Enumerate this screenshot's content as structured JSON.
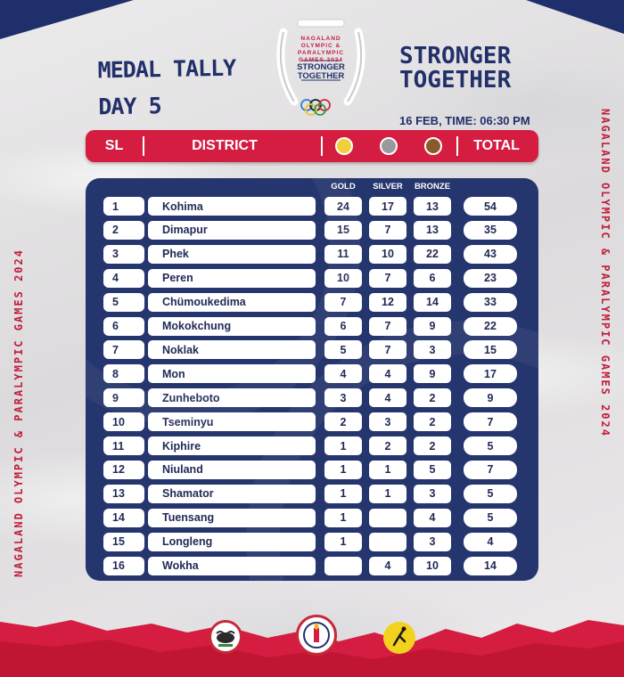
{
  "event_logo": {
    "line1": "NAGALAND",
    "line2": "OLYMPIC &",
    "line3": "PARALYMPIC",
    "line4": "GAMES 2024",
    "tagline1": "STRONGER",
    "tagline2": "TOGETHER"
  },
  "title": {
    "line1": "MEDAL TALLY",
    "line2": "DAY 5"
  },
  "slogan": {
    "line1": "STRONGER",
    "line2": "TOGETHER"
  },
  "datetime": "16 FEB, TIME: 06:30 PM",
  "side_text": "NAGALAND OLYMPIC & PARALYMPIC GAMES 2024",
  "header": {
    "sl": "SL",
    "district": "DISTRICT",
    "total": "TOTAL"
  },
  "medal_colors": {
    "gold": "#f2cf3a",
    "silver": "#9a9a9c",
    "bronze": "#8a5a2c"
  },
  "columns": {
    "gold": "GOLD",
    "silver": "SILVER",
    "bronze": "BRONZE"
  },
  "colors": {
    "navy": "#25356d",
    "red": "#d41d40"
  },
  "rows": [
    {
      "sl": "1",
      "district": "Kohima",
      "gold": "24",
      "silver": "17",
      "bronze": "13",
      "total": "54"
    },
    {
      "sl": "2",
      "district": "Dimapur",
      "gold": "15",
      "silver": "7",
      "bronze": "13",
      "total": "35"
    },
    {
      "sl": "3",
      "district": "Phek",
      "gold": "11",
      "silver": "10",
      "bronze": "22",
      "total": "43"
    },
    {
      "sl": "4",
      "district": "Peren",
      "gold": "10",
      "silver": "7",
      "bronze": "6",
      "total": "23"
    },
    {
      "sl": "5",
      "district": "Chümoukedima",
      "gold": "7",
      "silver": "12",
      "bronze": "14",
      "total": "33"
    },
    {
      "sl": "6",
      "district": "Mokokchung",
      "gold": "6",
      "silver": "7",
      "bronze": "9",
      "total": "22"
    },
    {
      "sl": "7",
      "district": "Noklak",
      "gold": "5",
      "silver": "7",
      "bronze": "3",
      "total": "15"
    },
    {
      "sl": "8",
      "district": "Mon",
      "gold": "4",
      "silver": "4",
      "bronze": "9",
      "total": "17"
    },
    {
      "sl": "9",
      "district": "Zunheboto",
      "gold": "3",
      "silver": "4",
      "bronze": "2",
      "total": "9"
    },
    {
      "sl": "10",
      "district": "Tseminyu",
      "gold": "2",
      "silver": "3",
      "bronze": "2",
      "total": "7"
    },
    {
      "sl": "11",
      "district": "Kiphire",
      "gold": "1",
      "silver": "2",
      "bronze": "2",
      "total": "5"
    },
    {
      "sl": "12",
      "district": "Niuland",
      "gold": "1",
      "silver": "1",
      "bronze": "5",
      "total": "7"
    },
    {
      "sl": "13",
      "district": "Shamator",
      "gold": "1",
      "silver": "1",
      "bronze": "3",
      "total": "5"
    },
    {
      "sl": "14",
      "district": "Tuensang",
      "gold": "1",
      "silver": "",
      "bronze": "4",
      "total": "5"
    },
    {
      "sl": "15",
      "district": "Longleng",
      "gold": "1",
      "silver": "",
      "bronze": "3",
      "total": "4"
    },
    {
      "sl": "16",
      "district": "Wokha",
      "gold": "",
      "silver": "4",
      "bronze": "10",
      "total": "14"
    }
  ]
}
